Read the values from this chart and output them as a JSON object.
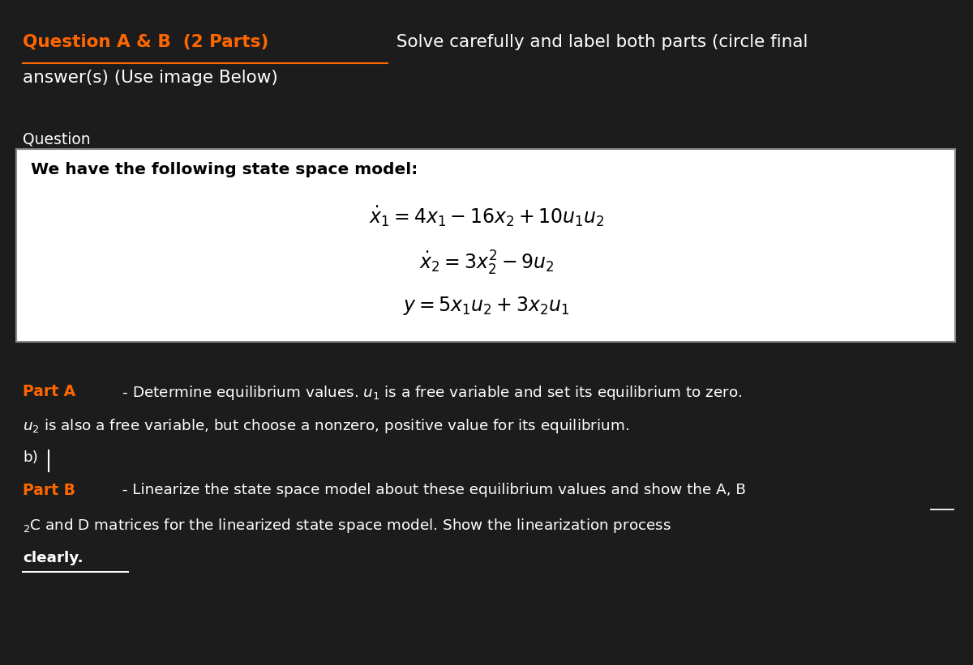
{
  "bg_color": "#1c1c1c",
  "text_color": "#ffffff",
  "orange_color": "#ff6600",
  "box_bg": "#ffffff",
  "box_border": "#888888",
  "fig_width": 12.0,
  "fig_height": 8.21,
  "title_orange": "Question A & B  (2 Parts)",
  "title_rest": " Solve carefully and label both parts (circle final",
  "title_line2": "answer(s) (Use image Below)",
  "question_label": "Question",
  "box_title": "We have the following state space model:",
  "partA_label": "Part A",
  "partA_text1": " - Determine equilibrium values. ",
  "partA_u1": "u",
  "partA_rest1": " is a free variable and set its equilibrium to zero.",
  "partA_text2": " is also a free variable, but choose a nonzero, positive value for its equilibrium.",
  "partA_b": "b)",
  "partB_label": "Part B",
  "partB_text1": " - Linearize the state space model about these equilibrium values and show the A, B",
  "partB_text2": "C and D matrices for the linearized state space model. Show the linearization process",
  "partB_text3": "clearly."
}
